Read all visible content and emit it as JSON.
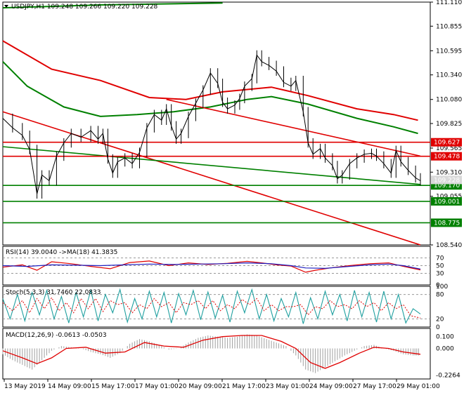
{
  "chart_data": {
    "type": "line",
    "symbol_header": "USDJPY,H1  109.248 109.266 109.220 109.228",
    "x_ticks": [
      "13 May 2019",
      "14 May 09:00",
      "15 May 17:00",
      "17 May 01:00",
      "20 May 09:00",
      "21 May 17:00",
      "23 May 01:00",
      "24 May 09:00",
      "27 May 17:00",
      "29 May 01:00"
    ],
    "price_axis": {
      "ylim": [
        108.54,
        111.11
      ],
      "ticks": [
        "111.110",
        "110.855",
        "110.595",
        "110.340",
        "110.080",
        "109.825",
        "109.565",
        "109.310",
        "109.055",
        "108.540"
      ],
      "tagged_levels": [
        {
          "value": 109.627,
          "label": "109.627",
          "color": "#e00000"
        },
        {
          "value": 109.478,
          "label": "109.478",
          "color": "#e00000"
        },
        {
          "value": 109.17,
          "label": "109.170",
          "color": "#008000"
        },
        {
          "value": 109.001,
          "label": "109.001",
          "color": "#008000"
        },
        {
          "value": 108.775,
          "label": "108.775",
          "color": "#008000"
        },
        {
          "value": 109.228,
          "label": "109.228",
          "color": "#d9d9d9"
        }
      ]
    },
    "price_path": [
      [
        0,
        109.88
      ],
      [
        4,
        109.78
      ],
      [
        8,
        109.7
      ],
      [
        11,
        109.55
      ],
      [
        14,
        109.08
      ],
      [
        16,
        109.28
      ],
      [
        19,
        109.22
      ],
      [
        22,
        109.48
      ],
      [
        25,
        109.62
      ],
      [
        28,
        109.72
      ],
      [
        32,
        109.68
      ],
      [
        36,
        109.75
      ],
      [
        39,
        109.66
      ],
      [
        41,
        109.72
      ],
      [
        43,
        109.45
      ],
      [
        45,
        109.3
      ],
      [
        47,
        109.42
      ],
      [
        50,
        109.46
      ],
      [
        53,
        109.4
      ],
      [
        56,
        109.52
      ],
      [
        59,
        109.78
      ],
      [
        62,
        109.92
      ],
      [
        65,
        109.86
      ],
      [
        67,
        109.98
      ],
      [
        69,
        109.8
      ],
      [
        71,
        109.66
      ],
      [
        73,
        109.72
      ],
      [
        76,
        109.9
      ],
      [
        79,
        110.04
      ],
      [
        82,
        110.18
      ],
      [
        85,
        110.36
      ],
      [
        88,
        110.25
      ],
      [
        90,
        110.05
      ],
      [
        92,
        109.98
      ],
      [
        95,
        110.02
      ],
      [
        97,
        110.09
      ],
      [
        99,
        110.22
      ],
      [
        102,
        110.3
      ],
      [
        104,
        110.55
      ],
      [
        106,
        110.48
      ],
      [
        109,
        110.44
      ],
      [
        112,
        110.38
      ],
      [
        115,
        110.26
      ],
      [
        118,
        110.22
      ],
      [
        120,
        110.28
      ],
      [
        123,
        109.95
      ],
      [
        125,
        109.62
      ],
      [
        127,
        109.5
      ],
      [
        130,
        109.56
      ],
      [
        132,
        109.46
      ],
      [
        135,
        109.38
      ],
      [
        137,
        109.24
      ],
      [
        139,
        109.28
      ],
      [
        142,
        109.4
      ],
      [
        145,
        109.46
      ],
      [
        148,
        109.5
      ],
      [
        151,
        109.51
      ],
      [
        153,
        109.48
      ],
      [
        156,
        109.4
      ],
      [
        159,
        109.3
      ],
      [
        161,
        109.54
      ],
      [
        163,
        109.42
      ],
      [
        166,
        109.33
      ],
      [
        169,
        109.25
      ],
      [
        171,
        109.22
      ]
    ],
    "horizontal_levels": [
      {
        "value": 109.627,
        "color": "#e00000"
      },
      {
        "value": 109.478,
        "color": "#e00000"
      },
      {
        "value": 109.17,
        "color": "#008000"
      },
      {
        "value": 109.001,
        "color": "#008000"
      },
      {
        "value": 108.775,
        "color": "#008000"
      }
    ],
    "trend_lines": [
      {
        "from": [
          0,
          109.95
        ],
        "to": [
          171,
          108.54
        ],
        "color": "#e00000"
      },
      {
        "from": [
          0,
          109.58
        ],
        "to": [
          171,
          109.18
        ],
        "color": "#008000"
      },
      {
        "from": [
          67,
          110.08
        ],
        "to": [
          171,
          109.48
        ],
        "color": "#e00000"
      }
    ],
    "moving_averages": [
      {
        "color": "#e00000",
        "points": [
          [
            0,
            110.7
          ],
          [
            20,
            110.4
          ],
          [
            40,
            110.28
          ],
          [
            60,
            110.1
          ],
          [
            75,
            110.08
          ],
          [
            90,
            110.16
          ],
          [
            110,
            110.21
          ],
          [
            125,
            110.12
          ],
          [
            145,
            109.98
          ],
          [
            160,
            109.92
          ],
          [
            170,
            109.86
          ]
        ]
      },
      {
        "color": "#008000",
        "points": [
          [
            0,
            110.48
          ],
          [
            10,
            110.22
          ],
          [
            25,
            110.0
          ],
          [
            40,
            109.9
          ],
          [
            55,
            109.92
          ],
          [
            70,
            109.95
          ],
          [
            85,
            110.0
          ],
          [
            100,
            110.08
          ],
          [
            110,
            110.11
          ],
          [
            125,
            110.03
          ],
          [
            145,
            109.88
          ],
          [
            160,
            109.79
          ],
          [
            170,
            109.72
          ]
        ]
      },
      {
        "color": "#008000",
        "points": [
          [
            0,
            111.05
          ],
          [
            40,
            111.08
          ],
          [
            90,
            111.1
          ]
        ]
      }
    ],
    "rsi": {
      "label": "RSI(14) 39.0040  ->MA(18) 41.3835",
      "ticks": [
        "70",
        "50",
        "30",
        "0"
      ],
      "ylim": [
        0,
        100
      ],
      "levels": [
        70,
        50,
        30
      ],
      "rsi_series": [
        [
          0,
          46
        ],
        [
          8,
          52
        ],
        [
          14,
          38
        ],
        [
          20,
          60
        ],
        [
          28,
          55
        ],
        [
          36,
          48
        ],
        [
          44,
          42
        ],
        [
          52,
          58
        ],
        [
          60,
          62
        ],
        [
          68,
          50
        ],
        [
          76,
          57
        ],
        [
          84,
          53
        ],
        [
          92,
          56
        ],
        [
          100,
          61
        ],
        [
          106,
          57
        ],
        [
          112,
          52
        ],
        [
          118,
          49
        ],
        [
          124,
          33
        ],
        [
          128,
          38
        ],
        [
          134,
          44
        ],
        [
          142,
          50
        ],
        [
          150,
          55
        ],
        [
          158,
          57
        ],
        [
          164,
          48
        ],
        [
          171,
          39
        ]
      ],
      "ma_series": [
        [
          0,
          50
        ],
        [
          10,
          48
        ],
        [
          20,
          52
        ],
        [
          30,
          51
        ],
        [
          40,
          50
        ],
        [
          50,
          52
        ],
        [
          60,
          54
        ],
        [
          70,
          53
        ],
        [
          80,
          54
        ],
        [
          90,
          55
        ],
        [
          100,
          57
        ],
        [
          110,
          55
        ],
        [
          118,
          50
        ],
        [
          124,
          44
        ],
        [
          132,
          43
        ],
        [
          140,
          47
        ],
        [
          150,
          52
        ],
        [
          158,
          54
        ],
        [
          164,
          50
        ],
        [
          171,
          41
        ]
      ]
    },
    "stoch": {
      "label": "Stoch(5,3,3) 31.7460 22.0833",
      "ticks": [
        "100",
        "80",
        "20",
        "0"
      ],
      "ylim": [
        0,
        100
      ],
      "levels": [
        80,
        20
      ],
      "main_series": [
        [
          0,
          70
        ],
        [
          3,
          20
        ],
        [
          6,
          80
        ],
        [
          9,
          15
        ],
        [
          12,
          85
        ],
        [
          15,
          30
        ],
        [
          18,
          90
        ],
        [
          21,
          20
        ],
        [
          24,
          75
        ],
        [
          27,
          10
        ],
        [
          30,
          85
        ],
        [
          33,
          25
        ],
        [
          36,
          90
        ],
        [
          39,
          15
        ],
        [
          42,
          80
        ],
        [
          45,
          35
        ],
        [
          48,
          92
        ],
        [
          51,
          12
        ],
        [
          54,
          70
        ],
        [
          57,
          20
        ],
        [
          60,
          88
        ],
        [
          63,
          25
        ],
        [
          66,
          85
        ],
        [
          69,
          10
        ],
        [
          72,
          82
        ],
        [
          75,
          30
        ],
        [
          78,
          90
        ],
        [
          81,
          18
        ],
        [
          84,
          86
        ],
        [
          87,
          22
        ],
        [
          90,
          78
        ],
        [
          93,
          12
        ],
        [
          96,
          88
        ],
        [
          99,
          35
        ],
        [
          102,
          92
        ],
        [
          105,
          20
        ],
        [
          108,
          80
        ],
        [
          111,
          15
        ],
        [
          114,
          70
        ],
        [
          117,
          25
        ],
        [
          120,
          85
        ],
        [
          123,
          8
        ],
        [
          126,
          72
        ],
        [
          129,
          20
        ],
        [
          132,
          88
        ],
        [
          135,
          30
        ],
        [
          138,
          80
        ],
        [
          141,
          15
        ],
        [
          144,
          90
        ],
        [
          147,
          25
        ],
        [
          150,
          85
        ],
        [
          153,
          12
        ],
        [
          156,
          88
        ],
        [
          159,
          20
        ],
        [
          162,
          80
        ],
        [
          165,
          10
        ],
        [
          168,
          45
        ],
        [
          171,
          32
        ]
      ],
      "signal_series": [
        [
          0,
          60
        ],
        [
          4,
          40
        ],
        [
          8,
          65
        ],
        [
          11,
          35
        ],
        [
          14,
          70
        ],
        [
          17,
          45
        ],
        [
          20,
          72
        ],
        [
          23,
          40
        ],
        [
          26,
          60
        ],
        [
          29,
          35
        ],
        [
          32,
          70
        ],
        [
          35,
          45
        ],
        [
          38,
          70
        ],
        [
          41,
          38
        ],
        [
          44,
          65
        ],
        [
          47,
          55
        ],
        [
          50,
          60
        ],
        [
          53,
          35
        ],
        [
          56,
          55
        ],
        [
          59,
          45
        ],
        [
          62,
          70
        ],
        [
          65,
          50
        ],
        [
          68,
          60
        ],
        [
          71,
          35
        ],
        [
          74,
          60
        ],
        [
          77,
          55
        ],
        [
          80,
          65
        ],
        [
          83,
          45
        ],
        [
          86,
          65
        ],
        [
          89,
          40
        ],
        [
          92,
          55
        ],
        [
          95,
          45
        ],
        [
          98,
          68
        ],
        [
          101,
          55
        ],
        [
          104,
          70
        ],
        [
          107,
          40
        ],
        [
          110,
          55
        ],
        [
          113,
          40
        ],
        [
          116,
          50
        ],
        [
          119,
          50
        ],
        [
          122,
          55
        ],
        [
          125,
          30
        ],
        [
          128,
          50
        ],
        [
          131,
          45
        ],
        [
          134,
          65
        ],
        [
          137,
          50
        ],
        [
          140,
          55
        ],
        [
          143,
          45
        ],
        [
          146,
          65
        ],
        [
          149,
          50
        ],
        [
          152,
          60
        ],
        [
          155,
          40
        ],
        [
          158,
          60
        ],
        [
          161,
          45
        ],
        [
          164,
          55
        ],
        [
          167,
          28
        ],
        [
          171,
          22
        ]
      ]
    },
    "macd": {
      "label": "MACD(12,26,9) -0.0613 -0.0503",
      "ticks": [
        "0.100",
        "0.000",
        "-0.2264"
      ],
      "ylim": [
        -0.26,
        0.17
      ],
      "histogram": [
        [
          0,
          -0.05
        ],
        [
          4,
          -0.1
        ],
        [
          8,
          -0.14
        ],
        [
          12,
          -0.18
        ],
        [
          16,
          -0.1
        ],
        [
          20,
          -0.02
        ],
        [
          24,
          0.02
        ],
        [
          28,
          0.01
        ],
        [
          32,
          0.0
        ],
        [
          36,
          -0.03
        ],
        [
          40,
          -0.05
        ],
        [
          44,
          -0.08
        ],
        [
          48,
          -0.04
        ],
        [
          52,
          0.04
        ],
        [
          56,
          0.08
        ],
        [
          60,
          0.06
        ],
        [
          64,
          0.03
        ],
        [
          68,
          -0.01
        ],
        [
          72,
          0.0
        ],
        [
          76,
          0.05
        ],
        [
          80,
          0.09
        ],
        [
          84,
          0.11
        ],
        [
          88,
          0.1
        ],
        [
          92,
          0.09
        ],
        [
          96,
          0.1
        ],
        [
          100,
          0.12
        ],
        [
          104,
          0.11
        ],
        [
          108,
          0.08
        ],
        [
          112,
          0.05
        ],
        [
          116,
          0.02
        ],
        [
          120,
          -0.06
        ],
        [
          124,
          -0.18
        ],
        [
          128,
          -0.21
        ],
        [
          132,
          -0.16
        ],
        [
          136,
          -0.11
        ],
        [
          140,
          -0.06
        ],
        [
          144,
          -0.02
        ],
        [
          148,
          0.02
        ],
        [
          152,
          0.03
        ],
        [
          156,
          0.0
        ],
        [
          160,
          -0.02
        ],
        [
          164,
          -0.05
        ],
        [
          168,
          -0.06
        ],
        [
          171,
          -0.06
        ]
      ],
      "signal_series": [
        [
          0,
          -0.02
        ],
        [
          8,
          -0.08
        ],
        [
          14,
          -0.13
        ],
        [
          20,
          -0.08
        ],
        [
          26,
          0.0
        ],
        [
          34,
          0.01
        ],
        [
          42,
          -0.04
        ],
        [
          50,
          -0.03
        ],
        [
          58,
          0.05
        ],
        [
          66,
          0.02
        ],
        [
          74,
          0.01
        ],
        [
          82,
          0.07
        ],
        [
          90,
          0.1
        ],
        [
          98,
          0.11
        ],
        [
          106,
          0.11
        ],
        [
          114,
          0.06
        ],
        [
          120,
          0.0
        ],
        [
          126,
          -0.12
        ],
        [
          132,
          -0.17
        ],
        [
          138,
          -0.12
        ],
        [
          146,
          -0.04
        ],
        [
          152,
          0.01
        ],
        [
          158,
          0.0
        ],
        [
          164,
          -0.03
        ],
        [
          171,
          -0.05
        ]
      ]
    }
  }
}
